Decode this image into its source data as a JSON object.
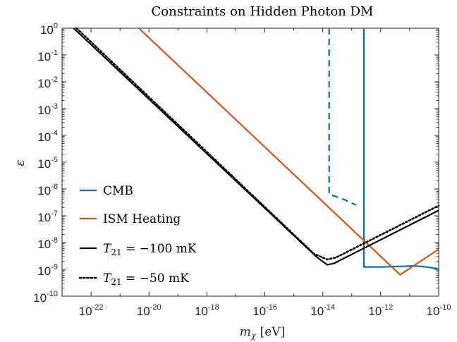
{
  "chart_data": {
    "type": "line",
    "title": "Constraints on Hidden Photon DM",
    "xlabel": "m_χ [eV]",
    "ylabel": "ε",
    "x_scale": "log",
    "y_scale": "log",
    "xlim": [
      1e-23,
      1e-10
    ],
    "ylim": [
      1e-10,
      1
    ],
    "x_ticks": [
      {
        "exp": -22,
        "label": "10",
        "sup": "-22"
      },
      {
        "exp": -20,
        "label": "10",
        "sup": "-20"
      },
      {
        "exp": -18,
        "label": "10",
        "sup": "-18"
      },
      {
        "exp": -16,
        "label": "10",
        "sup": "-16"
      },
      {
        "exp": -14,
        "label": "10",
        "sup": "-14"
      },
      {
        "exp": -12,
        "label": "10",
        "sup": "-12"
      },
      {
        "exp": -10,
        "label": "10",
        "sup": "-10"
      }
    ],
    "y_ticks": [
      {
        "exp": 0,
        "label": "10",
        "sup": "0"
      },
      {
        "exp": -1,
        "label": "10",
        "sup": "-1"
      },
      {
        "exp": -2,
        "label": "10",
        "sup": "-2"
      },
      {
        "exp": -3,
        "label": "10",
        "sup": "-3"
      },
      {
        "exp": -4,
        "label": "10",
        "sup": "-4"
      },
      {
        "exp": -5,
        "label": "10",
        "sup": "-5"
      },
      {
        "exp": -6,
        "label": "10",
        "sup": "-6"
      },
      {
        "exp": -7,
        "label": "10",
        "sup": "-7"
      },
      {
        "exp": -8,
        "label": "10",
        "sup": "-8"
      },
      {
        "exp": -9,
        "label": "10",
        "sup": "-9"
      },
      {
        "exp": -10,
        "label": "10",
        "sup": "-10"
      }
    ],
    "series": [
      {
        "name": "CMB",
        "color": "#0072BD",
        "style": "solid",
        "points": [
          [
            -12.58,
            0
          ],
          [
            -12.58,
            -8.91
          ],
          [
            -12.0,
            -8.91
          ],
          [
            -11.3,
            -8.89
          ],
          [
            -10.9,
            -8.87
          ],
          [
            -10.6,
            -8.89
          ],
          [
            -10.3,
            -8.93
          ],
          [
            -10.0,
            -8.98
          ]
        ]
      },
      {
        "name": "CMB (dashed)",
        "color": "#0072BD",
        "style": "dashed",
        "points": [
          [
            -13.78,
            0
          ],
          [
            -13.78,
            -6.2
          ],
          [
            -13.5,
            -6.3
          ],
          [
            -13.25,
            -6.4
          ],
          [
            -12.95,
            -6.55
          ],
          [
            -12.85,
            -6.6
          ]
        ]
      },
      {
        "name": "ISM Heating",
        "color": "#D95319",
        "style": "solid",
        "points": [
          [
            -20.35,
            0
          ],
          [
            -11.33,
            -9.2
          ],
          [
            -10.0,
            -8.25
          ]
        ]
      },
      {
        "name": "T21 = -100 mK",
        "color": "#000000",
        "style": "solid",
        "points": [
          [
            -22.6,
            0
          ],
          [
            -14.2,
            -8.55
          ],
          [
            -13.85,
            -8.83
          ],
          [
            -13.62,
            -8.78
          ],
          [
            -10.0,
            -6.8
          ]
        ]
      },
      {
        "name": "T21 = -50 mK",
        "color": "#000000",
        "style": "dotted",
        "points": [
          [
            -22.5,
            0
          ],
          [
            -14.3,
            -8.42
          ],
          [
            -13.85,
            -8.63
          ],
          [
            -13.55,
            -8.56
          ],
          [
            -10.0,
            -6.62
          ]
        ]
      }
    ],
    "legend": {
      "placement": "bottom-left",
      "entries": [
        {
          "series": 0,
          "main": "CMB",
          "math": false
        },
        {
          "series": 2,
          "main": "ISM Heating",
          "math": false
        },
        {
          "series": 3,
          "main": "T",
          "sub": "21",
          "rest": " = −100 mK",
          "math": true
        },
        {
          "series": 4,
          "main": "T",
          "sub": "21",
          "rest": " = −50 mK",
          "math": true
        }
      ]
    },
    "grid": false
  }
}
